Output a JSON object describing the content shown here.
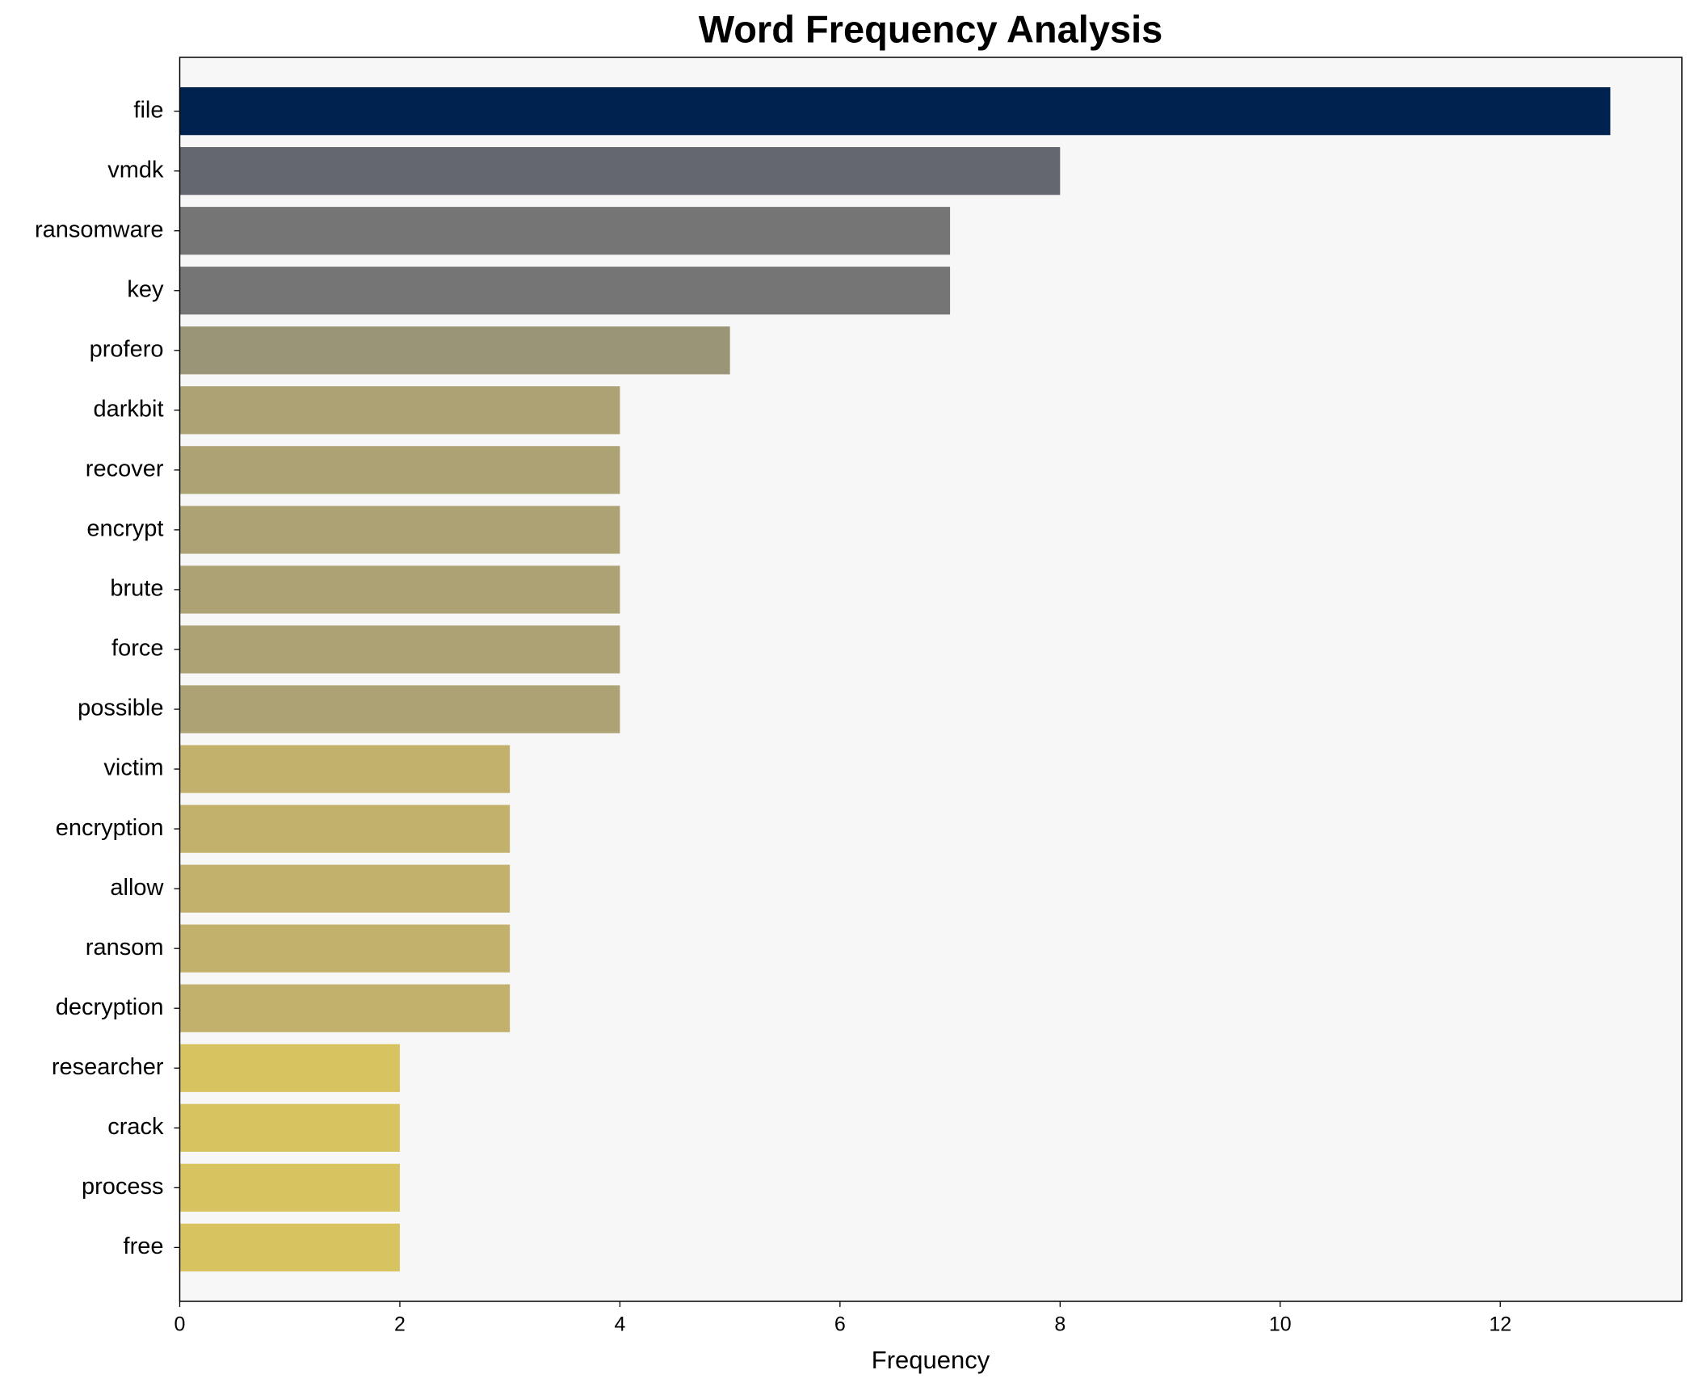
{
  "chart_data": {
    "type": "barh",
    "title": "Word Frequency Analysis",
    "xlabel": "Frequency",
    "categories": [
      "file",
      "vmdk",
      "ransomware",
      "key",
      "profero",
      "darkbit",
      "recover",
      "encrypt",
      "brute",
      "force",
      "possible",
      "victim",
      "encryption",
      "allow",
      "ransom",
      "decryption",
      "researcher",
      "crack",
      "process",
      "free"
    ],
    "values": [
      13,
      8,
      7,
      7,
      5,
      4,
      4,
      4,
      4,
      4,
      4,
      3,
      3,
      3,
      3,
      3,
      2,
      2,
      2,
      2
    ],
    "colors": [
      "#00224e",
      "#646670",
      "#757575",
      "#757575",
      "#9b9577",
      "#aca274",
      "#aca274",
      "#aca274",
      "#aca274",
      "#aca274",
      "#aca274",
      "#c2b16c",
      "#c2b16c",
      "#c2b16c",
      "#c2b16c",
      "#c2b16c",
      "#d7c35f",
      "#d7c35f",
      "#d7c35f",
      "#d7c35f"
    ],
    "xlim": [
      0,
      13.65
    ],
    "xticks": [
      0,
      2,
      4,
      6,
      8,
      10,
      12
    ],
    "grid": false
  }
}
